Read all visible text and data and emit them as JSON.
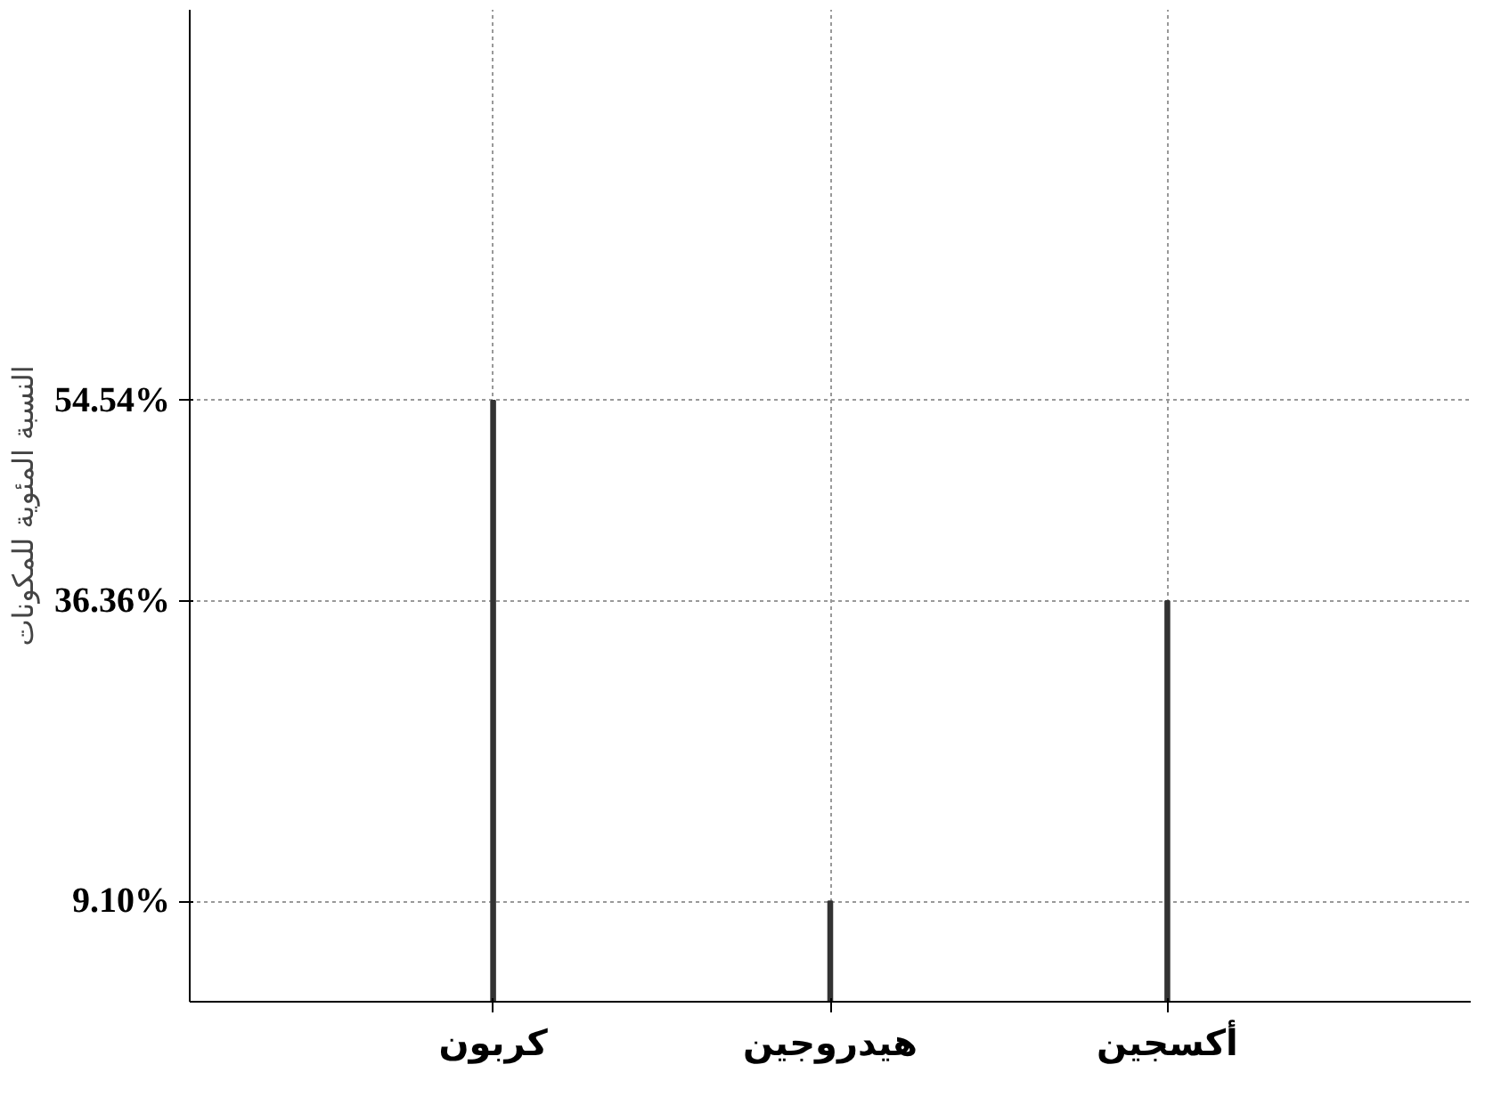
{
  "chart_data": {
    "type": "bar",
    "ylabel": "النسبة المئوية للمكونات",
    "categories": [
      "كربون",
      "هيدروجين",
      "أكسجين"
    ],
    "values": [
      54.54,
      9.1,
      36.36
    ],
    "color": "#333333",
    "ylim": [
      0,
      90
    ],
    "yticks": [
      {
        "value": 9.1,
        "label": "9.10%"
      },
      {
        "value": 36.36,
        "label": "36.36%"
      },
      {
        "value": 54.54,
        "label": "54.54%"
      }
    ],
    "grid": true
  }
}
